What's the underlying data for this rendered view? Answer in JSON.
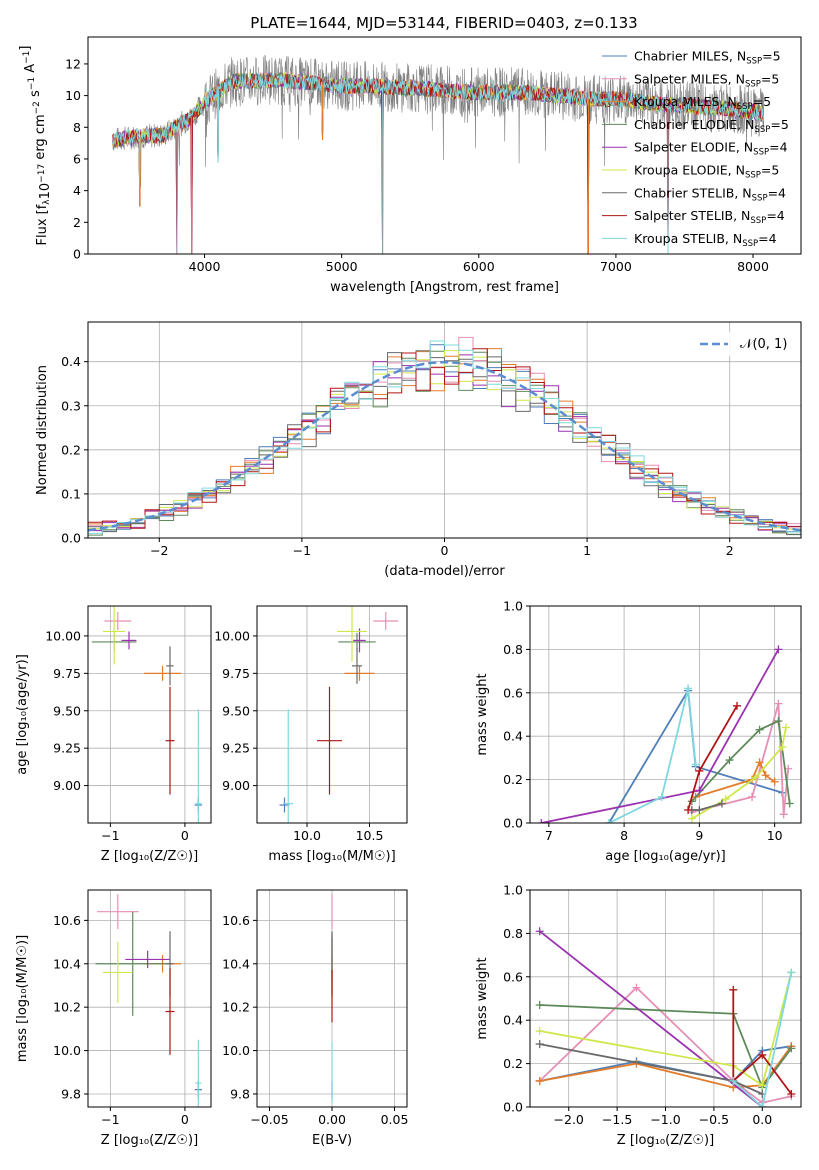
{
  "figure_title": "PLATE=1644, MJD=53144, FIBERID=0403, z=0.133",
  "colors": {
    "Chabrier MILES": "#4f7fb8",
    "Salpeter MILES": "#e58fb6",
    "Kroupa MILES": "#e37c2a",
    "Chabrier ELODIE": "#5e8a5a",
    "Salpeter ELODIE": "#9b32b0",
    "Kroupa ELODIE": "#cde84a",
    "Chabrier STELIB": "#6a6a6a",
    "Salpeter STELIB": "#b01515",
    "Kroupa STELIB": "#7fd8de"
  },
  "chart_data": [
    {
      "type": "line",
      "xlabel": "wavelength [Angstrom, rest frame]",
      "ylabel_parts": [
        "Flux [f",
        "λ",
        "10",
        "−17",
        " erg cm",
        "−2",
        " s",
        "−1",
        " A",
        "−1",
        "]"
      ],
      "xlim": [
        3150,
        8350
      ],
      "ylim": [
        0,
        13.7
      ],
      "xticks": [
        4000,
        5000,
        6000,
        7000,
        8000
      ],
      "yticks": [
        0,
        2,
        4,
        6,
        8,
        10,
        12
      ],
      "legend": [
        {
          "name": "Chabrier MILES",
          "nssp": "5"
        },
        {
          "name": "Salpeter MILES",
          "nssp": "5"
        },
        {
          "name": "Kroupa MILES",
          "nssp": "5"
        },
        {
          "name": "Chabrier ELODIE",
          "nssp": "5"
        },
        {
          "name": "Salpeter ELODIE",
          "nssp": "4"
        },
        {
          "name": "Kroupa ELODIE",
          "nssp": "5"
        },
        {
          "name": "Chabrier STELIB",
          "nssp": "4"
        },
        {
          "name": "Salpeter STELIB",
          "nssp": "4"
        },
        {
          "name": "Kroupa STELIB",
          "nssp": "4"
        }
      ],
      "legend_sub": "SSP",
      "legend_position": "upper right",
      "continuum": [
        [
          3330,
          7.2
        ],
        [
          3500,
          7.4
        ],
        [
          3700,
          7.5
        ],
        [
          3900,
          8.6
        ],
        [
          4000,
          9.6
        ],
        [
          4200,
          10.9
        ],
        [
          4500,
          11.0
        ],
        [
          4800,
          10.8
        ],
        [
          5000,
          10.6
        ],
        [
          5200,
          10.6
        ],
        [
          5500,
          10.5
        ],
        [
          5800,
          10.3
        ],
        [
          6000,
          10.2
        ],
        [
          6300,
          10.2
        ],
        [
          6600,
          10.0
        ],
        [
          6800,
          9.8
        ],
        [
          7000,
          9.8
        ],
        [
          7300,
          9.5
        ],
        [
          7600,
          9.3
        ],
        [
          7800,
          9.2
        ],
        [
          8000,
          9.0
        ],
        [
          8080,
          8.8
        ]
      ],
      "dips": [
        [
          3530,
          3.0
        ],
        [
          3800,
          0
        ],
        [
          3905,
          0
        ],
        [
          4100,
          5.8
        ],
        [
          4860,
          7.2
        ],
        [
          5300,
          0
        ],
        [
          6800,
          0
        ],
        [
          7380,
          0
        ]
      ],
      "grid": false
    },
    {
      "type": "step",
      "xlabel": "(data-model)/error",
      "ylabel": "Normed distribution",
      "xlim": [
        -2.5,
        2.5
      ],
      "ylim": [
        0,
        0.49
      ],
      "xticks": [
        -2,
        -1,
        0,
        1,
        2
      ],
      "yticks": [
        0.0,
        0.1,
        0.2,
        0.3,
        0.4
      ],
      "bin_width": 0.1,
      "reference_curve": {
        "name": "𝒩(0, 1)",
        "color": "#5b8dd0",
        "style": "dashed"
      },
      "grid": true
    },
    {
      "type": "scatter-errorbar",
      "xlabel": "Z [log₁₀(Z/Z☉)]",
      "ylabel": "age  [log₁₀(age/yr)]",
      "xlim": [
        -1.3,
        0.35
      ],
      "ylim": [
        8.75,
        10.2
      ],
      "xticks": [
        -1,
        0
      ],
      "yticks": [
        9.0,
        9.25,
        9.5,
        9.75,
        10.0
      ],
      "points": [
        {
          "model": "Chabrier MILES",
          "x": 0.18,
          "y": 8.87,
          "xe": 0.05,
          "ye": 0.05
        },
        {
          "model": "Salpeter MILES",
          "x": -0.9,
          "y": 10.1,
          "xe": 0.18,
          "ye": 0.06
        },
        {
          "model": "Kroupa MILES",
          "x": -0.3,
          "y": 9.75,
          "xe": 0.25,
          "ye": 0.05
        },
        {
          "model": "Chabrier ELODIE",
          "x": -0.95,
          "y": 9.96,
          "xe": 0.3,
          "ye": 0.06
        },
        {
          "model": "Salpeter ELODIE",
          "x": -0.75,
          "y": 9.97,
          "xe": 0.1,
          "ye": 0.06
        },
        {
          "model": "Kroupa ELODIE",
          "x": -0.95,
          "y": 10.03,
          "xe": 0.15,
          "ye": 0.22
        },
        {
          "model": "Chabrier STELIB",
          "x": -0.2,
          "y": 9.8,
          "xe": 0.05,
          "ye": 0.13
        },
        {
          "model": "Salpeter STELIB",
          "x": -0.2,
          "y": 9.3,
          "xe": 0.06,
          "ye": 0.36
        },
        {
          "model": "Kroupa STELIB",
          "x": 0.18,
          "y": 8.88,
          "xe": 0.04,
          "ye": 0.63
        }
      ],
      "grid": true
    },
    {
      "type": "scatter-errorbar",
      "xlabel": "mass [log₁₀(M/M☉)]",
      "ylabel": "",
      "xlim": [
        9.6,
        10.8
      ],
      "ylim": [
        8.75,
        10.2
      ],
      "xticks": [
        10.0,
        10.5
      ],
      "yticks": [
        9.0,
        9.25,
        9.5,
        9.75,
        10.0
      ],
      "points": [
        {
          "model": "Chabrier MILES",
          "x": 9.82,
          "y": 8.87,
          "xe": 0.04,
          "ye": 0.05
        },
        {
          "model": "Salpeter MILES",
          "x": 10.63,
          "y": 10.1,
          "xe": 0.1,
          "ye": 0.06
        },
        {
          "model": "Kroupa MILES",
          "x": 10.42,
          "y": 9.75,
          "xe": 0.12,
          "ye": 0.05
        },
        {
          "model": "Chabrier ELODIE",
          "x": 10.4,
          "y": 9.96,
          "xe": 0.15,
          "ye": 0.06
        },
        {
          "model": "Salpeter ELODIE",
          "x": 10.42,
          "y": 9.97,
          "xe": 0.05,
          "ye": 0.08
        },
        {
          "model": "Kroupa ELODIE",
          "x": 10.36,
          "y": 10.03,
          "xe": 0.12,
          "ye": 0.2
        },
        {
          "model": "Chabrier STELIB",
          "x": 10.4,
          "y": 9.8,
          "xe": 0.04,
          "ye": 0.12
        },
        {
          "model": "Salpeter STELIB",
          "x": 10.18,
          "y": 9.3,
          "xe": 0.1,
          "ye": 0.36
        },
        {
          "model": "Kroupa STELIB",
          "x": 9.85,
          "y": 8.88,
          "xe": 0.04,
          "ye": 0.63
        }
      ],
      "grid": true
    },
    {
      "type": "line",
      "xlabel": "age  [log₁₀(age/yr)]",
      "ylabel": "mass weight",
      "xlim": [
        6.75,
        10.35
      ],
      "ylim": [
        0,
        1.0
      ],
      "xticks": [
        7,
        8,
        9,
        10
      ],
      "yticks": [
        0.0,
        0.2,
        0.4,
        0.6,
        0.8,
        1.0
      ],
      "series": [
        {
          "model": "Chabrier MILES",
          "x": [
            7.8,
            8.85,
            8.95,
            10.1
          ],
          "y": [
            0.0,
            0.61,
            0.26,
            0.14
          ]
        },
        {
          "model": "Salpeter MILES",
          "x": [
            8.9,
            9.7,
            10.05,
            10.12,
            10.18
          ],
          "y": [
            0.05,
            0.12,
            0.55,
            0.04,
            0.25
          ]
        },
        {
          "model": "Kroupa MILES",
          "x": [
            8.95,
            9.7,
            9.8,
            9.88,
            10.0
          ],
          "y": [
            0.12,
            0.2,
            0.28,
            0.22,
            0.19
          ]
        },
        {
          "model": "Chabrier ELODIE",
          "x": [
            8.9,
            9.4,
            9.8,
            10.05,
            10.2
          ],
          "y": [
            0.1,
            0.29,
            0.43,
            0.47,
            0.09
          ]
        },
        {
          "model": "Salpeter ELODIE",
          "x": [
            6.9,
            9.0,
            10.05
          ],
          "y": [
            0.0,
            0.15,
            0.8
          ]
        },
        {
          "model": "Kroupa ELODIE",
          "x": [
            8.9,
            9.35,
            9.75,
            10.1,
            10.15
          ],
          "y": [
            0.02,
            0.11,
            0.21,
            0.35,
            0.44
          ]
        },
        {
          "model": "Chabrier STELIB",
          "x": [
            8.9,
            9.0,
            9.3
          ],
          "y": [
            0.06,
            0.06,
            0.09
          ]
        },
        {
          "model": "Salpeter STELIB",
          "x": [
            8.85,
            9.0,
            9.5
          ],
          "y": [
            0.06,
            0.24,
            0.54
          ]
        },
        {
          "model": "Kroupa STELIB",
          "x": [
            7.8,
            8.5,
            8.85,
            8.95
          ],
          "y": [
            0.0,
            0.12,
            0.62,
            0.27
          ]
        }
      ],
      "grid": true
    },
    {
      "type": "scatter-errorbar",
      "xlabel": "Z [log₁₀(Z/Z☉)]",
      "ylabel": "mass [log₁₀(M/M☉)]",
      "xlim": [
        -1.3,
        0.35
      ],
      "ylim": [
        9.74,
        10.74
      ],
      "xticks": [
        -1,
        0
      ],
      "yticks": [
        9.8,
        10.0,
        10.2,
        10.4,
        10.6
      ],
      "points": [
        {
          "model": "Chabrier MILES",
          "x": 0.18,
          "y": 9.82,
          "xe": 0.05,
          "ye": 0.04
        },
        {
          "model": "Salpeter MILES",
          "x": -0.9,
          "y": 10.64,
          "xe": 0.28,
          "ye": 0.08
        },
        {
          "model": "Kroupa MILES",
          "x": -0.3,
          "y": 10.4,
          "xe": 0.25,
          "ye": 0.04
        },
        {
          "model": "Chabrier ELODIE",
          "x": -0.7,
          "y": 10.4,
          "xe": 0.5,
          "ye": 0.24
        },
        {
          "model": "Salpeter ELODIE",
          "x": -0.5,
          "y": 10.42,
          "xe": 0.3,
          "ye": 0.04
        },
        {
          "model": "Kroupa ELODIE",
          "x": -0.9,
          "y": 10.36,
          "xe": 0.2,
          "ye": 0.14
        },
        {
          "model": "Chabrier STELIB",
          "x": -0.2,
          "y": 10.4,
          "xe": 0.05,
          "ye": 0.15
        },
        {
          "model": "Salpeter STELIB",
          "x": -0.2,
          "y": 10.18,
          "xe": 0.06,
          "ye": 0.2
        },
        {
          "model": "Kroupa STELIB",
          "x": 0.18,
          "y": 9.85,
          "xe": 0.04,
          "ye": 0.2
        }
      ],
      "grid": true
    },
    {
      "type": "scatter-errorbar",
      "xlabel": "E(B-V)",
      "ylabel": "",
      "xlim": [
        -0.06,
        0.06
      ],
      "ylim": [
        9.74,
        10.74
      ],
      "xticks": [
        -0.05,
        0.0,
        0.05
      ],
      "yticks": [
        9.8,
        10.0,
        10.2,
        10.4,
        10.6
      ],
      "points": [
        {
          "model": "Chabrier MILES",
          "x": 0.0,
          "y": 9.82,
          "xe": 0,
          "ye": 0.04
        },
        {
          "model": "Salpeter MILES",
          "x": 0.0,
          "y": 10.64,
          "xe": 0,
          "ye": 0.08
        },
        {
          "model": "Kroupa MILES",
          "x": 0.0,
          "y": 10.4,
          "xe": 0,
          "ye": 0.04
        },
        {
          "model": "Chabrier ELODIE",
          "x": 0.0,
          "y": 10.4,
          "xe": 0,
          "ye": 0.14
        },
        {
          "model": "Salpeter ELODIE",
          "x": 0.0,
          "y": 10.42,
          "xe": 0,
          "ye": 0.1
        },
        {
          "model": "Kroupa ELODIE",
          "x": 0.0,
          "y": 10.36,
          "xe": 0,
          "ye": 0.14
        },
        {
          "model": "Chabrier STELIB",
          "x": 0.0,
          "y": 10.4,
          "xe": 0,
          "ye": 0.15
        },
        {
          "model": "Salpeter STELIB",
          "x": 0.0,
          "y": 10.25,
          "xe": 0,
          "ye": 0.12
        },
        {
          "model": "Kroupa STELIB",
          "x": 0.0,
          "y": 9.9,
          "xe": 0,
          "ye": 0.14
        }
      ],
      "grid": true
    },
    {
      "type": "line",
      "xlabel": "Z [log₁₀(Z/Z☉)]",
      "ylabel": "mass weight",
      "xlim": [
        -2.4,
        0.4
      ],
      "ylim": [
        0,
        1.0
      ],
      "xticks": [
        -2.0,
        -1.5,
        -1.0,
        -0.5,
        0.0
      ],
      "yticks": [
        0.0,
        0.2,
        0.4,
        0.6,
        0.8,
        1.0
      ],
      "series": [
        {
          "model": "Chabrier MILES",
          "x": [
            -2.3,
            -1.3,
            -0.3,
            0.0,
            0.3
          ],
          "y": [
            0.12,
            0.21,
            0.12,
            0.26,
            0.28
          ]
        },
        {
          "model": "Salpeter MILES",
          "x": [
            -2.3,
            -1.3,
            -0.3,
            0.0,
            0.3
          ],
          "y": [
            0.12,
            0.55,
            0.12,
            0.02,
            0.05
          ]
        },
        {
          "model": "Kroupa MILES",
          "x": [
            -2.3,
            -1.3,
            -0.3,
            0.0,
            0.3
          ],
          "y": [
            0.12,
            0.2,
            0.09,
            0.1,
            0.28
          ]
        },
        {
          "model": "Chabrier ELODIE",
          "x": [
            -2.3,
            -0.3,
            0.0,
            0.3
          ],
          "y": [
            0.47,
            0.43,
            0.09,
            0.27
          ]
        },
        {
          "model": "Salpeter ELODIE",
          "x": [
            -2.3,
            0.0
          ],
          "y": [
            0.81,
            0.0
          ]
        },
        {
          "model": "Kroupa ELODIE",
          "x": [
            -2.3,
            -0.3,
            0.0,
            0.3
          ],
          "y": [
            0.35,
            0.19,
            0.1,
            0.62
          ]
        },
        {
          "model": "Chabrier STELIB",
          "x": [
            -2.3,
            -0.3,
            0.0
          ],
          "y": [
            0.29,
            0.12,
            0.06
          ]
        },
        {
          "model": "Salpeter STELIB",
          "x": [
            -0.3,
            -0.3,
            0.0,
            0.3
          ],
          "y": [
            0.54,
            0.12,
            0.24,
            0.06
          ]
        },
        {
          "model": "Kroupa STELIB",
          "x": [
            -0.3,
            0.0,
            0.3
          ],
          "y": [
            0.12,
            0.0,
            0.62
          ]
        }
      ],
      "grid": true
    }
  ]
}
